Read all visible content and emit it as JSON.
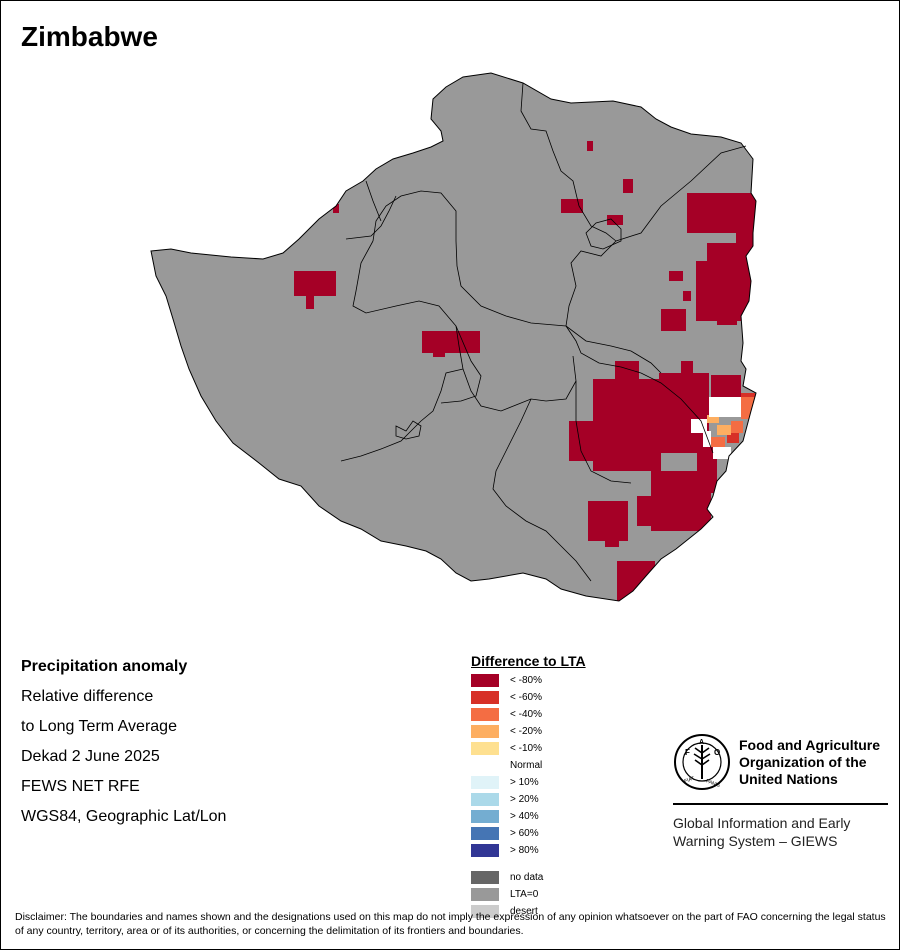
{
  "title": "Zimbabwe",
  "info": {
    "heading": "Precipitation anomaly",
    "line1": "Relative difference",
    "line2": "to Long Term Average",
    "period": "Dekad 2 June 2025",
    "source": "FEWS NET RFE",
    "projection": "WGS84, Geographic Lat/Lon"
  },
  "legend": {
    "title": "Difference to LTA",
    "classes": [
      {
        "label": "< -80%",
        "color": "#a50026"
      },
      {
        "label": "< -60%",
        "color": "#d73027"
      },
      {
        "label": "< -40%",
        "color": "#f46d43"
      },
      {
        "label": "< -20%",
        "color": "#fdae61"
      },
      {
        "label": "< -10%",
        "color": "#fee090"
      },
      {
        "label": "Normal",
        "color": "#ffffff"
      },
      {
        "label": "> 10%",
        "color": "#e0f3f8"
      },
      {
        "label": "> 20%",
        "color": "#abd9e9"
      },
      {
        "label": "> 40%",
        "color": "#74add1"
      },
      {
        "label": "> 60%",
        "color": "#4575b4"
      },
      {
        "label": "> 80%",
        "color": "#313695"
      }
    ],
    "special": [
      {
        "label": "no data",
        "color": "#666666"
      },
      {
        "label": "LTA=0",
        "color": "#999999"
      },
      {
        "label": "desert",
        "color": "#cccccc"
      }
    ]
  },
  "map": {
    "base_color": "#999999",
    "boundary_color": "#000000"
  },
  "fao": {
    "name_lines": [
      "Food and Agriculture",
      "Organization of the",
      "United Nations"
    ],
    "giews_lines": [
      "Global Information and Early",
      "Warning System – GIEWS"
    ],
    "logo_text_top": "FAO",
    "logo_text_bottom": "FIAT PANIS"
  },
  "disclaimer": "Disclaimer: The boundaries and names shown and the designations used on this map do not imply the expression of any opinion whatsoever on the part of FAO concerning the legal status of any country, territory, area or of its authorities, or concerning the delimitation of its frontiers and boundaries."
}
